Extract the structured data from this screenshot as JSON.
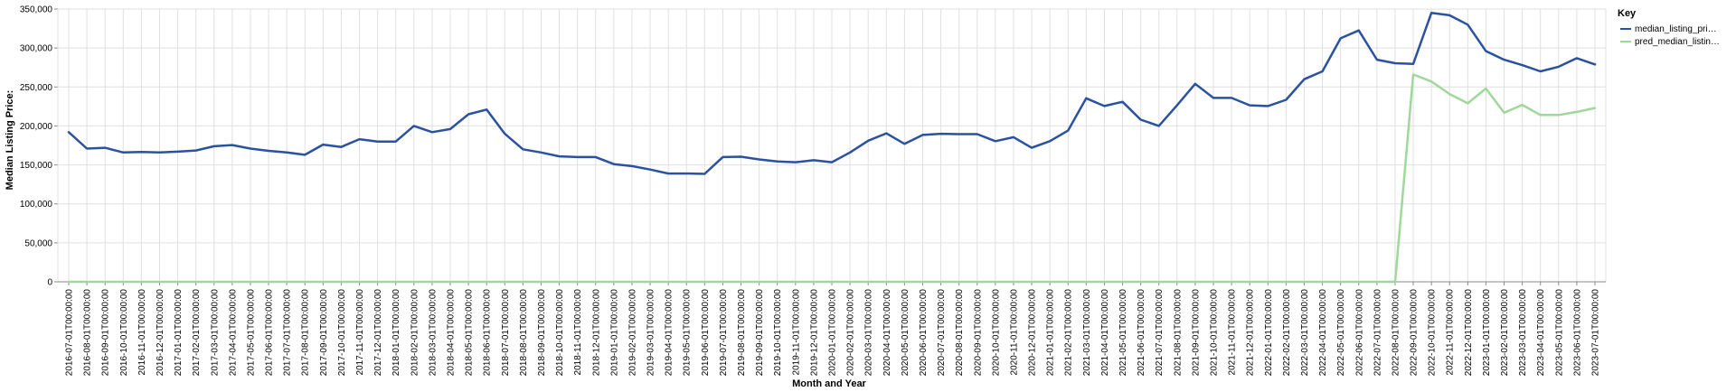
{
  "chart_data": {
    "type": "line",
    "xlabel": "Month and Year",
    "ylabel": "Median Listing Price:",
    "ylim": [
      0,
      350000
    ],
    "y_ticks": [
      0,
      50000,
      100000,
      150000,
      200000,
      250000,
      300000,
      350000
    ],
    "grid": true,
    "legend": {
      "title": "Key",
      "placement": "top-right",
      "entries": [
        "median_listing_pri…",
        "pred_median_listin…"
      ]
    },
    "colors": {
      "actual": "#2b52a0",
      "predicted": "#9fd89b",
      "grid": "#e0e0e0"
    },
    "x": [
      "2016-07-01T00:00:00",
      "2016-08-01T00:00:00",
      "2016-09-01T00:00:00",
      "2016-10-01T00:00:00",
      "2016-11-01T00:00:00",
      "2016-12-01T00:00:00",
      "2017-01-01T00:00:00",
      "2017-02-01T00:00:00",
      "2017-03-01T00:00:00",
      "2017-04-01T00:00:00",
      "2017-05-01T00:00:00",
      "2017-06-01T00:00:00",
      "2017-07-01T00:00:00",
      "2017-08-01T00:00:00",
      "2017-09-01T00:00:00",
      "2017-10-01T00:00:00",
      "2017-11-01T00:00:00",
      "2017-12-01T00:00:00",
      "2018-01-01T00:00:00",
      "2018-02-01T00:00:00",
      "2018-03-01T00:00:00",
      "2018-04-01T00:00:00",
      "2018-05-01T00:00:00",
      "2018-06-01T00:00:00",
      "2018-07-01T00:00:00",
      "2018-08-01T00:00:00",
      "2018-09-01T00:00:00",
      "2018-10-01T00:00:00",
      "2018-11-01T00:00:00",
      "2018-12-01T00:00:00",
      "2019-01-01T00:00:00",
      "2019-02-01T00:00:00",
      "2019-03-01T00:00:00",
      "2019-04-01T00:00:00",
      "2019-05-01T00:00:00",
      "2019-06-01T00:00:00",
      "2019-07-01T00:00:00",
      "2019-08-01T00:00:00",
      "2019-09-01T00:00:00",
      "2019-10-01T00:00:00",
      "2019-11-01T00:00:00",
      "2019-12-01T00:00:00",
      "2020-01-01T00:00:00",
      "2020-02-01T00:00:00",
      "2020-03-01T00:00:00",
      "2020-04-01T00:00:00",
      "2020-05-01T00:00:00",
      "2020-06-01T00:00:00",
      "2020-07-01T00:00:00",
      "2020-08-01T00:00:00",
      "2020-09-01T00:00:00",
      "2020-10-01T00:00:00",
      "2020-11-01T00:00:00",
      "2020-12-01T00:00:00",
      "2021-01-01T00:00:00",
      "2021-02-01T00:00:00",
      "2021-03-01T00:00:00",
      "2021-04-01T00:00:00",
      "2021-05-01T00:00:00",
      "2021-06-01T00:00:00",
      "2021-07-01T00:00:00",
      "2021-08-01T00:00:00",
      "2021-09-01T00:00:00",
      "2021-10-01T00:00:00",
      "2021-11-01T00:00:00",
      "2021-12-01T00:00:00",
      "2022-01-01T00:00:00",
      "2022-02-01T00:00:00",
      "2022-03-01T00:00:00",
      "2022-04-01T00:00:00",
      "2022-05-01T00:00:00",
      "2022-06-01T00:00:00",
      "2022-07-01T00:00:00",
      "2022-08-01T00:00:00",
      "2022-09-01T00:00:00",
      "2022-10-01T00:00:00",
      "2022-11-01T00:00:00",
      "2022-12-01T00:00:00",
      "2023-01-01T00:00:00",
      "2023-02-01T00:00:00",
      "2023-03-01T00:00:00",
      "2023-04-01T00:00:00",
      "2023-05-01T00:00:00",
      "2023-06-01T00:00:00",
      "2023-07-01T00:00:00"
    ],
    "x_tick_labels": [
      "2016-07-01T00:00:00",
      "2016-08-01T00:00:00",
      "2016-09-01T00:00:00",
      "2016-10-01T00:00:00",
      "2016-11-01T00:00:00",
      "2016-12-01T00:00:00",
      "2017-01-01T00:00:00",
      "2017-02-01T00:00:00",
      "2017-03-01T00:00:00",
      "2017-04-01T00:00:00",
      "2017-05-01T00:00:00",
      "2017-06-01T00:00:00",
      "2017-07-01T00:00:00",
      "2017-08-01T00:00:00",
      "2017-09-01T00:00:00",
      "2017-10-01T00:00:00",
      "2017-11-01T00:00:00",
      "2017-12-01T00:00:00",
      "2018-01-01T00:00:00",
      "2018-02-01T00:00:00",
      "2018-03-01T00:00:00",
      "2018-04-01T00:00:00",
      "2018-05-01T00:00:00",
      "2018-06-01T00:00:00",
      "2018-07-01T00:00:00",
      "2018-08-01T00:00:00",
      "2018-09-01T00:00:00",
      "2018-10-01T00:00:00",
      "2018-11-01T00:00:00",
      "2018-12-01T00:00:00",
      "2019-01-01T00:00:00",
      "2019-02-01T00:00:00",
      "2019-03-01T00:00:00",
      "2019-04-01T00:00:00",
      "2019-05-01T00:00:00",
      "2019-06-01T00:00:00",
      "2019-07-01T00:00:00",
      "2019-08-01T00:00:00",
      "2019-09-01T00:00:00",
      "2019-10-01T00:00:00",
      "2019-11-01T00:00:00",
      "2019-12-01T00:00:00",
      "2020-01-01T00:00:00",
      "2020-02-01T00:00:00",
      "2020-03-01T00:00:00",
      "2020-04-01T00:00:00",
      "2020-05-01T00:00:00",
      "2020-06-01T00:00:00",
      "2020-07-01T00:00:00",
      "2020-08-01T00:00:00",
      "2020-09-01T00:00:00",
      "2020-10-01T00:00:00",
      "2020-11-01T00:00:00",
      "2020-12-01T00:00:00",
      "2021-01-01T00:00:00",
      "2021-02-01T00:00:00",
      "2021-03-01T00:00:00",
      "2021-04-01T00:00:00",
      "2021-05-01T00:00:00",
      "2021-06-01T00:00:00",
      "2021-07-01T00:00:00",
      "2021-08-01T00:00:00",
      "2021-09-01T00:00:00",
      "2021-10-01T00:00:00",
      "2021-11-01T00:00:00",
      "2021-12-01T00:00:00",
      "2022-01-01T00:00:00",
      "2022-02-01T00:00:00",
      "2022-03-01T00:00:00",
      "2022-04-01T00:00:00",
      "2022-05-01T00:00:00",
      "2022-06-01T00:00:00",
      "2022-07-01T00:00:00",
      "2022-08-01T00:00:00",
      "2022-09-01T00:00:00",
      "2022-10-01T00:00:00",
      "2022-11-01T00:00:00",
      "2022-12-01T00:00:00",
      "2023-01-01T00:00:00",
      "2023-02-01T00:00:00",
      "2023-03-01T00:00:00",
      "2023-04-01T00:00:00",
      "2023-05-01T00:00:00",
      "2023-06-01T00:00:00",
      "2023-07-01T00:00:00"
    ],
    "series": [
      {
        "name": "median_listing_pri…",
        "values": [
          192000,
          171000,
          172000,
          166000,
          166500,
          166000,
          167000,
          168500,
          174000,
          175500,
          171000,
          168000,
          166000,
          163000,
          176000,
          173000,
          183000,
          180000,
          180000,
          200000,
          192000,
          196000,
          215000,
          221000,
          190000,
          170000,
          166000,
          161000,
          160000,
          160000,
          151000,
          148500,
          144000,
          139000,
          139000,
          138500,
          160000,
          160500,
          157000,
          154500,
          153500,
          156000,
          153500,
          166000,
          181000,
          190500,
          177000,
          188500,
          190000,
          189500,
          189500,
          180500,
          185500,
          172000,
          180500,
          194000,
          235500,
          225500,
          231000,
          208000,
          200000,
          226500,
          254000,
          236000,
          236000,
          226500,
          225500,
          233500,
          260000,
          270000,
          312500,
          322500,
          285000,
          280500,
          279500,
          345000,
          342000,
          330000,
          296000,
          285000,
          278000,
          270000,
          276000,
          287000,
          279000
        ]
      },
      {
        "name": "pred_median_listin…",
        "values": [
          0,
          0,
          0,
          0,
          0,
          0,
          0,
          0,
          0,
          0,
          0,
          0,
          0,
          0,
          0,
          0,
          0,
          0,
          0,
          0,
          0,
          0,
          0,
          0,
          0,
          0,
          0,
          0,
          0,
          0,
          0,
          0,
          0,
          0,
          0,
          0,
          0,
          0,
          0,
          0,
          0,
          0,
          0,
          0,
          0,
          0,
          0,
          0,
          0,
          0,
          0,
          0,
          0,
          0,
          0,
          0,
          0,
          0,
          0,
          0,
          0,
          0,
          0,
          0,
          0,
          0,
          0,
          0,
          0,
          0,
          0,
          0,
          0,
          0,
          266000,
          257000,
          241000,
          229000,
          248000,
          217000,
          227000,
          214000,
          214000,
          218000,
          223000
        ]
      }
    ]
  }
}
